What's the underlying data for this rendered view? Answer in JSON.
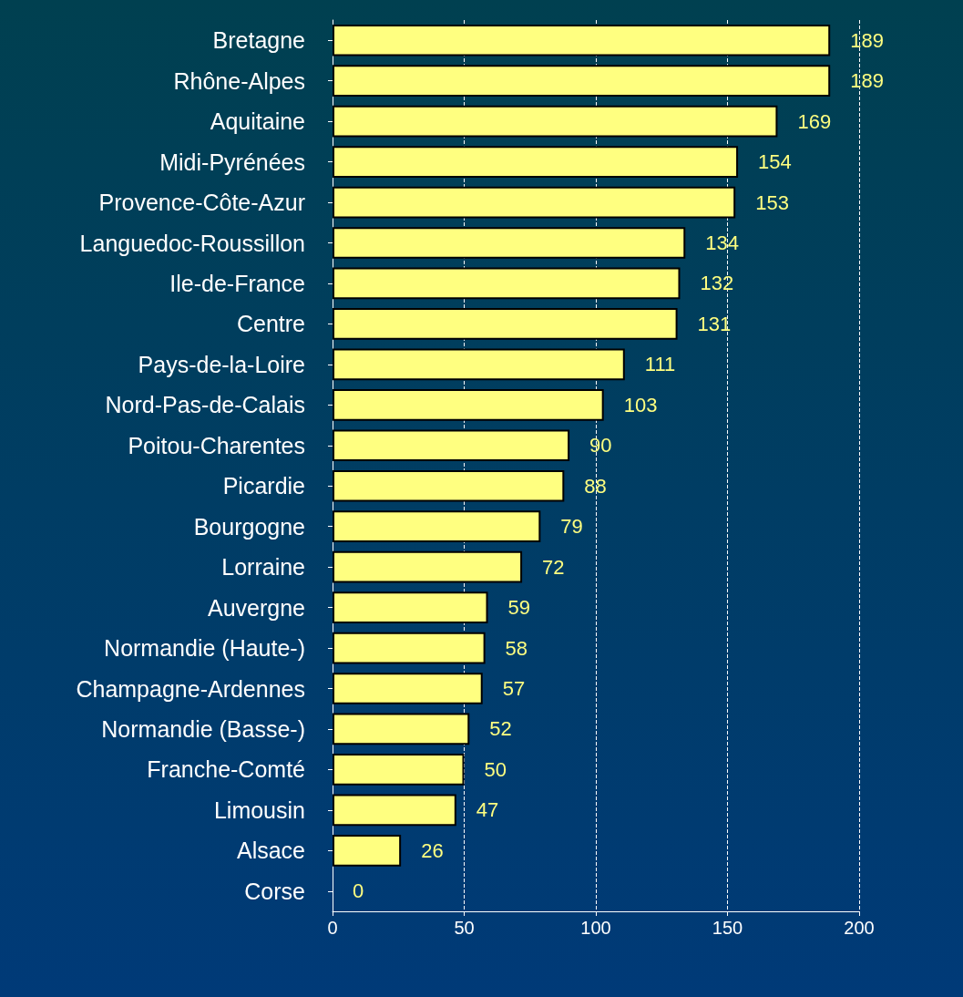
{
  "chart_data": {
    "type": "bar",
    "orientation": "horizontal",
    "categories": [
      "Bretagne",
      "Rhône-Alpes",
      "Aquitaine",
      "Midi-Pyrénées",
      "Provence-Côte-Azur",
      "Languedoc-Roussillon",
      "Ile-de-France",
      "Centre",
      "Pays-de-la-Loire",
      "Nord-Pas-de-Calais",
      "Poitou-Charentes",
      "Picardie",
      "Bourgogne",
      "Lorraine",
      "Auvergne",
      "Normandie (Haute-)",
      "Champagne-Ardennes",
      "Normandie (Basse-)",
      "Franche-Comté",
      "Limousin",
      "Alsace",
      "Corse"
    ],
    "values": [
      189,
      189,
      169,
      154,
      153,
      134,
      132,
      131,
      111,
      103,
      90,
      88,
      79,
      72,
      59,
      58,
      57,
      52,
      50,
      47,
      26,
      0
    ],
    "color": "#ffff80",
    "xlim": [
      0,
      200
    ],
    "xticks": [
      0,
      50,
      100,
      150,
      200
    ],
    "grid": "x",
    "data_labels": true
  }
}
